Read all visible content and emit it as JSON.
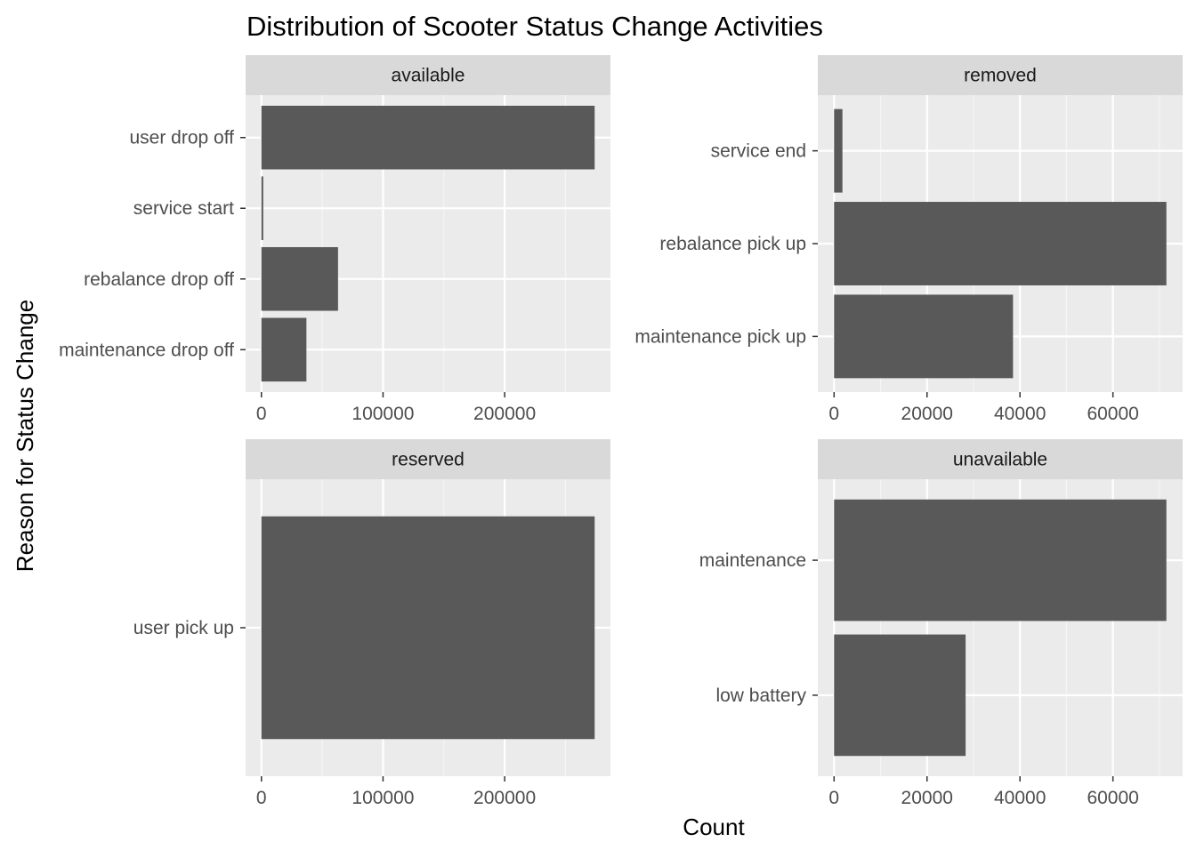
{
  "chart_data": {
    "type": "bar",
    "orientation": "horizontal",
    "title": "Distribution of Scooter Status Change Activities",
    "xlabel": "Count",
    "ylabel": "Reason for Status Change",
    "facet_by": "status",
    "scales": "free",
    "grid": true,
    "colors": {
      "bar": "#595959",
      "panel": "#ebebeb",
      "strip": "#d9d9d9",
      "grid_major": "#ffffff",
      "grid_minor": "#f5f5f5",
      "tick": "#333333"
    },
    "panels": [
      {
        "name": "available",
        "categories": [
          "user drop off",
          "service start",
          "rebalance drop off",
          "maintenance drop off"
        ],
        "values": [
          274000,
          1500,
          63000,
          37000
        ],
        "xlim": [
          -13000,
          287000
        ],
        "xticks": [
          0,
          100000,
          200000
        ],
        "xtick_labels": [
          "0",
          "100000",
          "200000"
        ]
      },
      {
        "name": "removed",
        "categories": [
          "service end",
          "rebalance pick up",
          "maintenance pick up"
        ],
        "values": [
          1800,
          71500,
          38500
        ],
        "xlim": [
          -3500,
          75000
        ],
        "xticks": [
          0,
          20000,
          40000,
          60000
        ],
        "xtick_labels": [
          "0",
          "20000",
          "40000",
          "60000"
        ]
      },
      {
        "name": "reserved",
        "categories": [
          "user pick up"
        ],
        "values": [
          274000
        ],
        "xlim": [
          -13000,
          287000
        ],
        "xticks": [
          0,
          100000,
          200000
        ],
        "xtick_labels": [
          "0",
          "100000",
          "200000"
        ]
      },
      {
        "name": "unavailable",
        "categories": [
          "maintenance",
          "low battery"
        ],
        "values": [
          71500,
          28300
        ],
        "xlim": [
          -3500,
          75000
        ],
        "xticks": [
          0,
          20000,
          40000,
          60000
        ],
        "xtick_labels": [
          "0",
          "20000",
          "40000",
          "60000"
        ]
      }
    ]
  }
}
